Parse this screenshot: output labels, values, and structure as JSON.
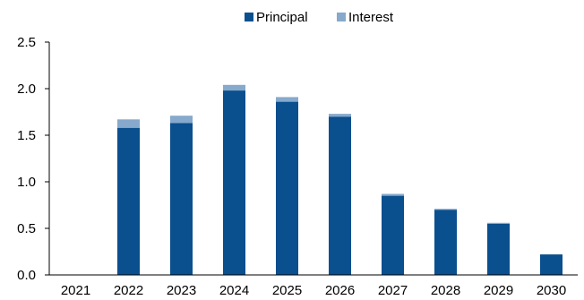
{
  "chart_data": {
    "type": "bar",
    "stacked": true,
    "categories": [
      "2021",
      "2022",
      "2023",
      "2024",
      "2025",
      "2026",
      "2027",
      "2028",
      "2029",
      "2030"
    ],
    "series": [
      {
        "name": "Principal",
        "color": "#0a4f8e",
        "values": [
          0,
          1.58,
          1.63,
          1.98,
          1.86,
          1.7,
          0.85,
          0.7,
          0.55,
          0.22
        ]
      },
      {
        "name": "Interest",
        "color": "#86a9cc",
        "values": [
          0,
          0.09,
          0.08,
          0.06,
          0.05,
          0.03,
          0.02,
          0.01,
          0.01,
          0.0
        ]
      }
    ],
    "ylim": [
      0,
      2.5
    ],
    "yticks": [
      "0.0",
      "0.5",
      "1.0",
      "1.5",
      "2.0",
      "2.5"
    ],
    "title": "",
    "xlabel": "",
    "ylabel": "",
    "grid": false,
    "legend": "top"
  }
}
